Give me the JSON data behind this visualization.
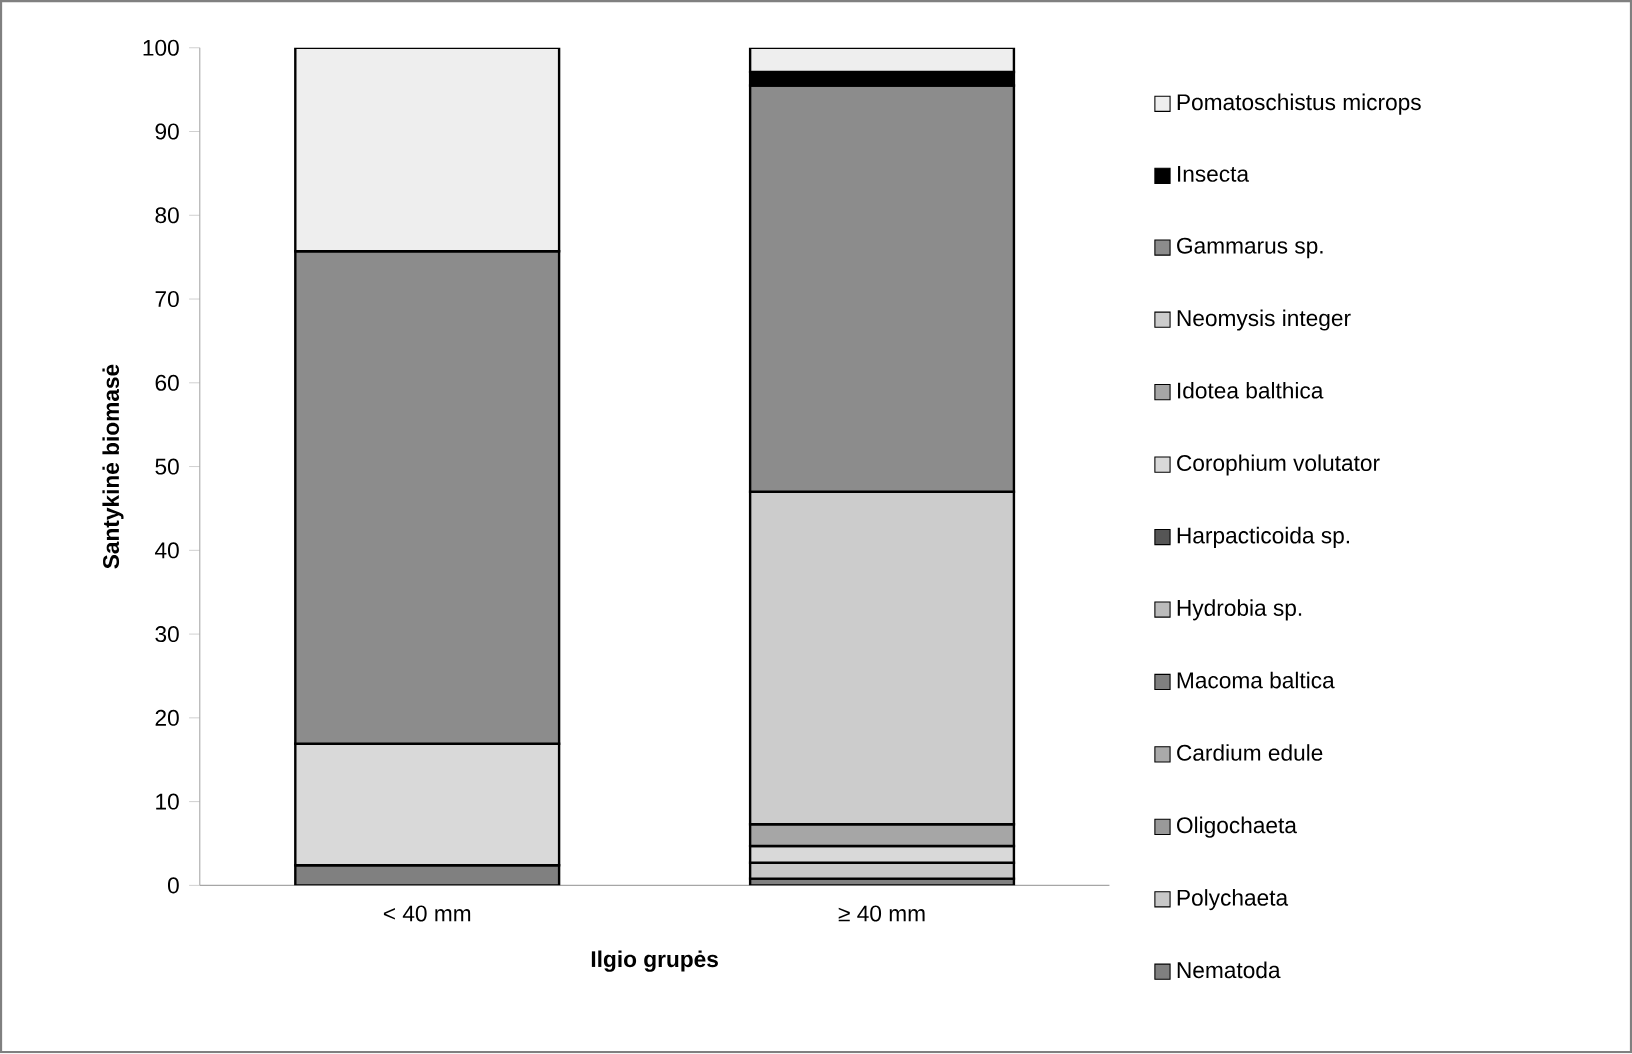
{
  "chart_data": {
    "type": "bar",
    "stacked": true,
    "xlabel": "Ilgio grupės",
    "ylabel": "Santykinė biomasė",
    "categories": [
      "< 40 mm",
      "≥ 40 mm"
    ],
    "ylim": [
      0,
      100
    ],
    "yticks": [
      0,
      10,
      20,
      30,
      40,
      50,
      60,
      70,
      80,
      90,
      100
    ],
    "grid": false,
    "legend": "right",
    "series": [
      {
        "name": "Nematoda",
        "color": "#808080",
        "values": [
          2.4,
          0.8
        ]
      },
      {
        "name": "Polychaeta",
        "color": "#c8c8c8",
        "values": [
          0,
          1.9
        ]
      },
      {
        "name": "Oligochaeta",
        "color": "#999999",
        "values": [
          0,
          0
        ]
      },
      {
        "name": "Cardium edule",
        "color": "#aaaaaa",
        "values": [
          0,
          0
        ]
      },
      {
        "name": "Macoma baltica",
        "color": "#7f7f7f",
        "values": [
          0,
          0
        ]
      },
      {
        "name": "Hydrobia sp.",
        "color": "#bbbbbb",
        "values": [
          0,
          0
        ]
      },
      {
        "name": "Harpacticoida sp.",
        "color": "#555555",
        "values": [
          0,
          0
        ]
      },
      {
        "name": "Corophium volutator",
        "color": "#d9d9d9",
        "values": [
          14.5,
          2.0
        ]
      },
      {
        "name": "Idotea balthica",
        "color": "#a6a6a6",
        "values": [
          0,
          2.6
        ]
      },
      {
        "name": "Neomysis integer",
        "color": "#cccccc",
        "values": [
          0,
          39.7
        ]
      },
      {
        "name": "Gammarus sp.",
        "color": "#8c8c8c",
        "values": [
          58.8,
          48.5
        ]
      },
      {
        "name": "Insecta",
        "color": "#000000",
        "values": [
          0,
          1.6
        ]
      },
      {
        "name": "Pomatoschistus microps",
        "color": "#eeeeee",
        "values": [
          24.3,
          2.9
        ]
      }
    ]
  }
}
